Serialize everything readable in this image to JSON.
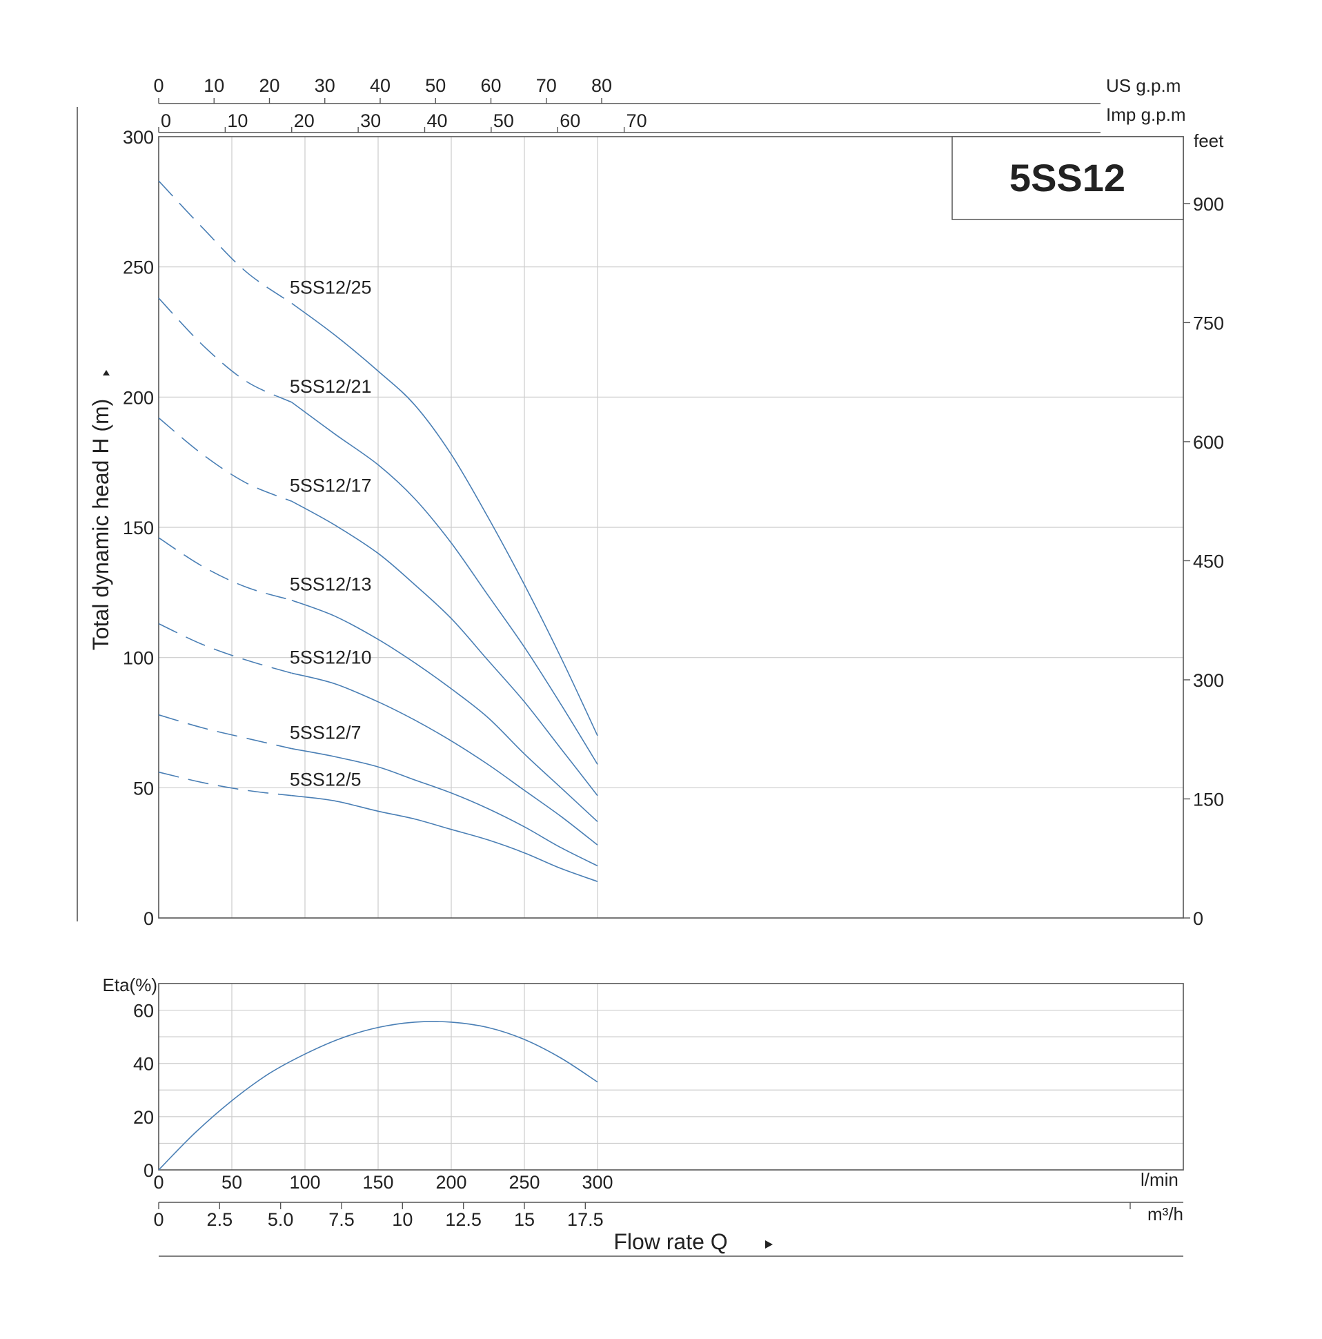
{
  "chart_data": [
    {
      "type": "line",
      "title": "5SS12",
      "ylabel": "Total dynamic head H (m)",
      "y2label": "feet",
      "xunits": {
        "lmin": "l/min",
        "m3h": "m³/h",
        "usgpm": "US g.p.m",
        "impgpm": "Imp g.p.m"
      },
      "xlabel": "Flow rate Q",
      "xlim": [
        0,
        350
      ],
      "ylim": [
        0,
        300
      ],
      "grid": true,
      "ticks": {
        "lmin": [
          "0",
          "50",
          "100",
          "150",
          "200",
          "250",
          "300"
        ],
        "m3h": [
          "0",
          "2.5",
          "5.0",
          "7.5",
          "10",
          "12.5",
          "15",
          "17.5"
        ],
        "usgpm": [
          "0",
          "10",
          "20",
          "30",
          "40",
          "50",
          "60",
          "70",
          "80"
        ],
        "impgpm": [
          "0",
          "10",
          "20",
          "30",
          "40",
          "50",
          "60",
          "70"
        ],
        "ym": [
          "0",
          "50",
          "100",
          "150",
          "200",
          "250",
          "300"
        ],
        "yfeet": [
          "0",
          "150",
          "300",
          "450",
          "600",
          "750",
          "900"
        ]
      },
      "dashed_to_x": 91,
      "series": [
        {
          "name": "5SS12/25",
          "x": [
            0,
            30,
            60,
            91,
            120,
            150,
            175,
            200,
            225,
            250,
            275,
            300
          ],
          "values": [
            283,
            265,
            248,
            236,
            224,
            210,
            197,
            178,
            154,
            128,
            100,
            70
          ]
        },
        {
          "name": "5SS12/21",
          "x": [
            0,
            30,
            60,
            91,
            120,
            150,
            175,
            200,
            225,
            250,
            275,
            300
          ],
          "values": [
            238,
            220,
            206,
            198,
            186,
            174,
            161,
            144,
            124,
            104,
            82,
            59
          ]
        },
        {
          "name": "5SS12/17",
          "x": [
            0,
            30,
            60,
            91,
            120,
            150,
            175,
            200,
            225,
            250,
            275,
            300
          ],
          "values": [
            192,
            178,
            167,
            160,
            151,
            140,
            128,
            115,
            99,
            83,
            65,
            47
          ]
        },
        {
          "name": "5SS12/13",
          "x": [
            0,
            30,
            60,
            91,
            120,
            150,
            175,
            200,
            225,
            250,
            275,
            300
          ],
          "values": [
            146,
            135,
            127,
            122,
            116,
            107,
            98,
            88,
            77,
            63,
            50,
            37
          ]
        },
        {
          "name": "5SS12/10",
          "x": [
            0,
            30,
            60,
            91,
            120,
            150,
            175,
            200,
            225,
            250,
            275,
            300
          ],
          "values": [
            113,
            105,
            99,
            94,
            90,
            83,
            76,
            68,
            59,
            49,
            39,
            28
          ]
        },
        {
          "name": "5SS12/7",
          "x": [
            0,
            30,
            60,
            91,
            120,
            150,
            175,
            200,
            225,
            250,
            275,
            300
          ],
          "values": [
            78,
            73,
            69,
            65,
            62,
            58,
            53,
            48,
            42,
            35,
            27,
            20
          ]
        },
        {
          "name": "5SS12/5",
          "x": [
            0,
            30,
            60,
            91,
            120,
            150,
            175,
            200,
            225,
            250,
            275,
            300
          ],
          "values": [
            56,
            52,
            49,
            47,
            45,
            41,
            38,
            34,
            30,
            25,
            19,
            14
          ]
        }
      ]
    },
    {
      "type": "line",
      "ylabel": "Eta(%)",
      "xlabel": "Flow rate Q",
      "xlim": [
        0,
        350
      ],
      "ylim": [
        0,
        70
      ],
      "grid": true,
      "ticks": {
        "y": [
          "0",
          "20",
          "40",
          "60"
        ]
      },
      "series": [
        {
          "x": [
            0,
            25,
            50,
            75,
            100,
            125,
            150,
            175,
            200,
            225,
            250,
            275,
            300
          ],
          "values": [
            0,
            14,
            26,
            36,
            43.5,
            49.5,
            53.5,
            55.5,
            55.5,
            53.5,
            49,
            42,
            33
          ]
        }
      ]
    }
  ]
}
